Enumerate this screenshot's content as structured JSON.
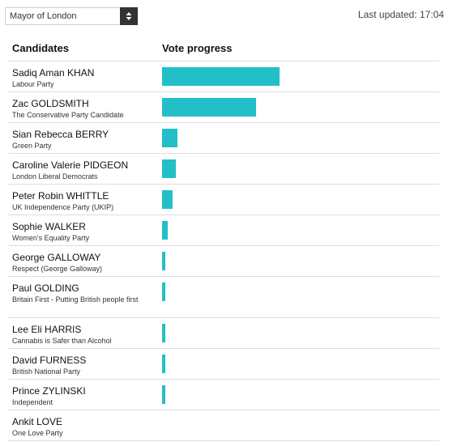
{
  "selector": {
    "value": "Mayor of London"
  },
  "last_updated": "Last updated: 17:04",
  "table": {
    "headers": {
      "candidates": "Candidates",
      "vote_progress": "Vote progress"
    },
    "rows": [
      {
        "name": "Sadiq Aman KHAN",
        "party": "Labour Party",
        "progress": 1.0
      },
      {
        "name": "Zac GOLDSMITH",
        "party": "The Conservative Party Candidate",
        "progress": 0.8
      },
      {
        "name": "Sian Rebecca BERRY",
        "party": "Green Party",
        "progress": 0.134
      },
      {
        "name": "Caroline Valerie PIDGEON",
        "party": "London Liberal Democrats",
        "progress": 0.117
      },
      {
        "name": "Peter Robin WHITTLE",
        "party": "UK Independence Party (UKIP)",
        "progress": 0.09
      },
      {
        "name": "Sophie WALKER",
        "party": "Women's Equality Party",
        "progress": 0.048
      },
      {
        "name": "George GALLOWAY",
        "party": "Respect (George Galloway)",
        "progress": 0.028
      },
      {
        "name": "Paul GOLDING",
        "party": "Britain First - Putting British people first",
        "progress": 0.028
      },
      {
        "name": "Lee Eli HARRIS",
        "party": "Cannabis is Safer than Alcohol",
        "progress": 0.028
      },
      {
        "name": "David FURNESS",
        "party": "British National Party",
        "progress": 0.028
      },
      {
        "name": "Prince ZYLINSKI",
        "party": "Independent",
        "progress": 0.028
      },
      {
        "name": "Ankit LOVE",
        "party": "One Love Party",
        "progress": 0.0
      }
    ]
  },
  "colors": {
    "bar": "#22bfc8",
    "select_button": "#333333"
  },
  "icons": {
    "select_arrows": "up-down-arrows-icon"
  }
}
